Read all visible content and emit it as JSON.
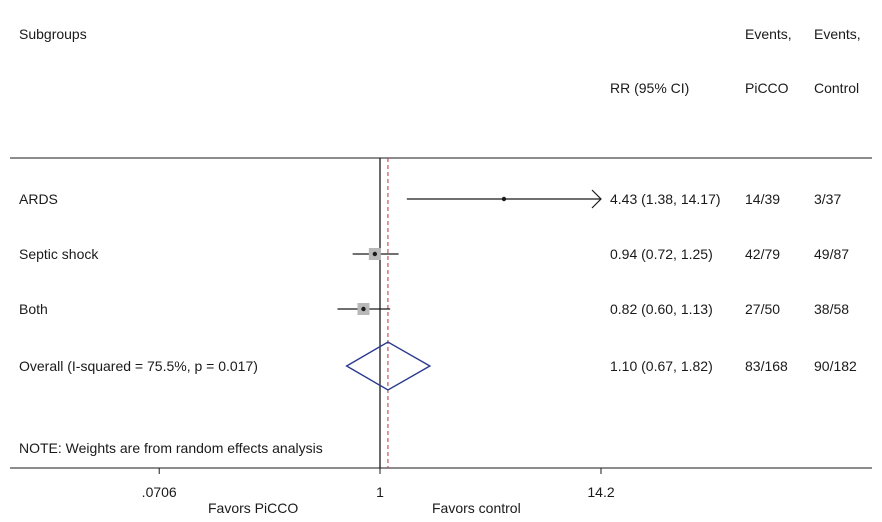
{
  "headers": {
    "subgroups": "Subgroups",
    "rr": "RR (95% CI)",
    "events_picco_line1": "Events,",
    "events_picco_line2": "PiCCO",
    "events_control_line1": "Events,",
    "events_control_line2": "Control"
  },
  "note": "NOTE: Weights are from random effects analysis",
  "axis": {
    "ticks": [
      {
        "value": 0.0706,
        "label": ".0706"
      },
      {
        "value": 1,
        "label": "1"
      },
      {
        "value": 14.2,
        "label": "14.2"
      }
    ],
    "favors_left": "Favors PiCCO",
    "favors_right": "Favors control"
  },
  "colors": {
    "diamond": "#2b3a8f",
    "reference_line": "#c0303a",
    "weight_box": "#b8b8b8",
    "lines": "#1a1a1a"
  },
  "chart_data": {
    "type": "forest",
    "scale": "log",
    "xlim": [
      0.0706,
      14.2
    ],
    "null_value": 1,
    "overall_estimate": 1.1,
    "rows": [
      {
        "label": "ARDS",
        "rr": 4.43,
        "lower": 1.38,
        "upper": 14.17,
        "text": "4.43 (1.38, 14.17)",
        "events_picco": "14/39",
        "events_control": "3/37",
        "arrow_right": true
      },
      {
        "label": "Septic shock",
        "rr": 0.94,
        "lower": 0.72,
        "upper": 1.25,
        "text": "0.94 (0.72, 1.25)",
        "events_picco": "42/79",
        "events_control": "49/87"
      },
      {
        "label": "Both",
        "rr": 0.82,
        "lower": 0.6,
        "upper": 1.13,
        "text": "0.82 (0.60, 1.13)",
        "events_picco": "27/50",
        "events_control": "38/58"
      }
    ],
    "overall": {
      "label": "Overall  (I-squared = 75.5%, p = 0.017)",
      "rr": 1.1,
      "lower": 0.67,
      "upper": 1.82,
      "text": "1.10 (0.67, 1.82)",
      "events_picco": "83/168",
      "events_control": "90/182"
    }
  }
}
